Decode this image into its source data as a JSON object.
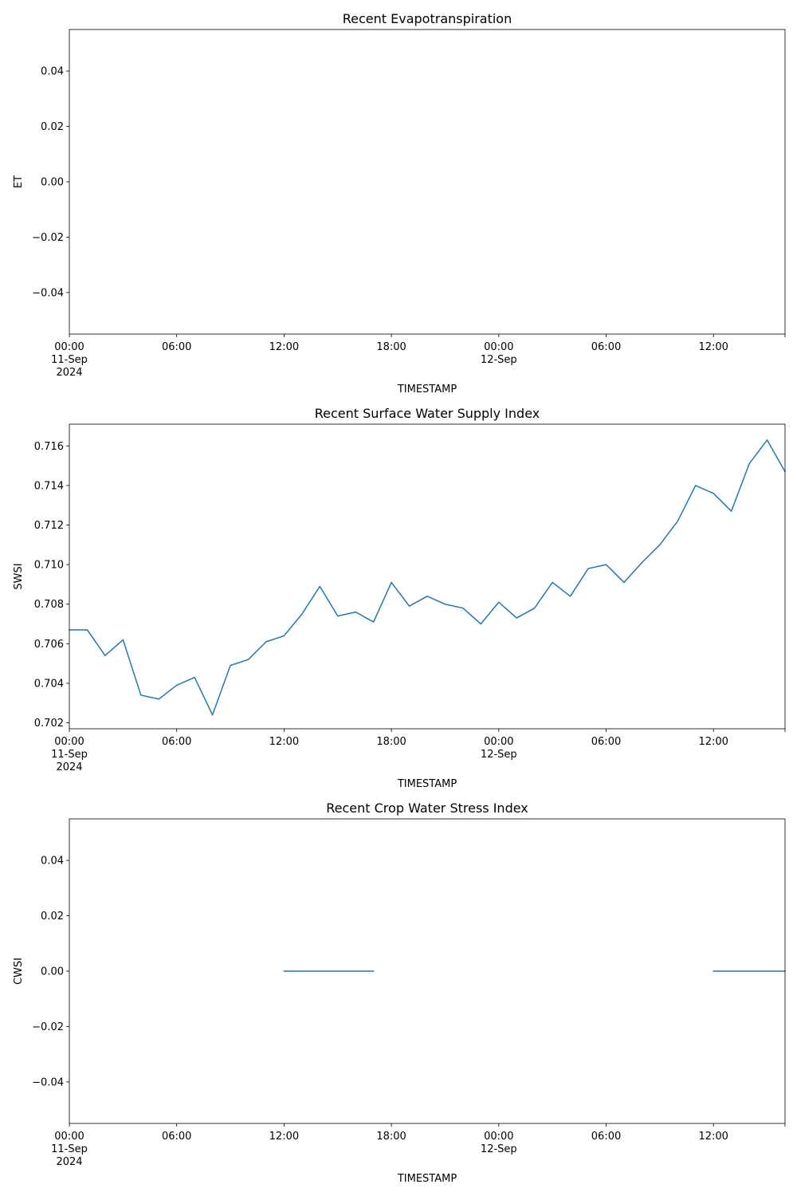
{
  "chart_data": [
    {
      "type": "line",
      "title": "Recent Evapotranspiration",
      "xlabel": "TIMESTAMP",
      "ylabel": "ET",
      "xlim": [
        "2024-09-11 00:00",
        "2024-09-12 16:00"
      ],
      "ylim": [
        -0.055,
        0.055
      ],
      "xticks": [
        {
          "value": "2024-09-11 00:00",
          "lines": [
            "00:00",
            "11-Sep",
            "2024"
          ]
        },
        {
          "value": "2024-09-11 06:00",
          "lines": [
            "06:00"
          ]
        },
        {
          "value": "2024-09-11 12:00",
          "lines": [
            "12:00"
          ]
        },
        {
          "value": "2024-09-11 18:00",
          "lines": [
            "18:00"
          ]
        },
        {
          "value": "2024-09-12 00:00",
          "lines": [
            "00:00",
            "12-Sep"
          ]
        },
        {
          "value": "2024-09-12 06:00",
          "lines": [
            "06:00"
          ]
        },
        {
          "value": "2024-09-12 12:00",
          "lines": [
            "12:00"
          ]
        },
        {
          "value": "2024-09-12 16:00",
          "lines": []
        }
      ],
      "yticks": [
        {
          "value": 0.04,
          "label": "0.04"
        },
        {
          "value": 0.02,
          "label": "0.02"
        },
        {
          "value": 0.0,
          "label": "0.00"
        },
        {
          "value": -0.02,
          "label": "−0.02"
        },
        {
          "value": -0.04,
          "label": "−0.04"
        }
      ],
      "color": "#1f77b4",
      "series": []
    },
    {
      "type": "line",
      "title": "Recent Surface Water Supply Index",
      "xlabel": "TIMESTAMP",
      "ylabel": "SWSI",
      "xlim": [
        "2024-09-11 00:00",
        "2024-09-12 16:00"
      ],
      "ylim": [
        0.7017,
        0.7171
      ],
      "xticks": [
        {
          "value": "2024-09-11 00:00",
          "lines": [
            "00:00",
            "11-Sep",
            "2024"
          ]
        },
        {
          "value": "2024-09-11 06:00",
          "lines": [
            "06:00"
          ]
        },
        {
          "value": "2024-09-11 12:00",
          "lines": [
            "12:00"
          ]
        },
        {
          "value": "2024-09-11 18:00",
          "lines": [
            "18:00"
          ]
        },
        {
          "value": "2024-09-12 00:00",
          "lines": [
            "00:00",
            "12-Sep"
          ]
        },
        {
          "value": "2024-09-12 06:00",
          "lines": [
            "06:00"
          ]
        },
        {
          "value": "2024-09-12 12:00",
          "lines": [
            "12:00"
          ]
        },
        {
          "value": "2024-09-12 16:00",
          "lines": []
        }
      ],
      "yticks": [
        {
          "value": 0.716,
          "label": "0.716"
        },
        {
          "value": 0.714,
          "label": "0.714"
        },
        {
          "value": 0.712,
          "label": "0.712"
        },
        {
          "value": 0.71,
          "label": "0.710"
        },
        {
          "value": 0.708,
          "label": "0.708"
        },
        {
          "value": 0.706,
          "label": "0.706"
        },
        {
          "value": 0.704,
          "label": "0.704"
        },
        {
          "value": 0.702,
          "label": "0.702"
        }
      ],
      "color": "#1f77b4",
      "series": [
        {
          "segments": [
            {
              "x": [
                "2024-09-11 00:00",
                "2024-09-11 01:00",
                "2024-09-11 02:00",
                "2024-09-11 03:00",
                "2024-09-11 04:00",
                "2024-09-11 05:00",
                "2024-09-11 06:00",
                "2024-09-11 07:00",
                "2024-09-11 08:00",
                "2024-09-11 09:00",
                "2024-09-11 10:00",
                "2024-09-11 11:00",
                "2024-09-11 12:00",
                "2024-09-11 13:00",
                "2024-09-11 14:00",
                "2024-09-11 15:00",
                "2024-09-11 16:00",
                "2024-09-11 17:00",
                "2024-09-11 18:00",
                "2024-09-11 19:00",
                "2024-09-11 20:00",
                "2024-09-11 21:00",
                "2024-09-11 22:00",
                "2024-09-11 23:00",
                "2024-09-12 00:00",
                "2024-09-12 01:00",
                "2024-09-12 02:00",
                "2024-09-12 03:00",
                "2024-09-12 04:00",
                "2024-09-12 05:00",
                "2024-09-12 06:00",
                "2024-09-12 07:00",
                "2024-09-12 08:00",
                "2024-09-12 09:00",
                "2024-09-12 10:00",
                "2024-09-12 11:00",
                "2024-09-12 12:00",
                "2024-09-12 13:00",
                "2024-09-12 14:00",
                "2024-09-12 15:00",
                "2024-09-12 16:00"
              ],
              "y": [
                0.7067,
                0.7067,
                0.7054,
                0.7062,
                0.7034,
                0.7032,
                0.7039,
                0.7043,
                0.7024,
                0.7049,
                0.7052,
                0.7061,
                0.7064,
                0.7075,
                0.7089,
                0.7074,
                0.7076,
                0.7071,
                0.7091,
                0.7079,
                0.7084,
                0.708,
                0.7078,
                0.707,
                0.7081,
                0.7073,
                0.7078,
                0.7091,
                0.7084,
                0.7098,
                0.71,
                0.7091,
                0.7101,
                0.711,
                0.7122,
                0.714,
                0.7136,
                0.7127,
                0.7151,
                0.7163,
                0.7147
              ]
            }
          ]
        }
      ]
    },
    {
      "type": "line",
      "title": "Recent Crop Water Stress Index",
      "xlabel": "TIMESTAMP",
      "ylabel": "CWSI",
      "xlim": [
        "2024-09-11 00:00",
        "2024-09-12 16:00"
      ],
      "ylim": [
        -0.055,
        0.055
      ],
      "xticks": [
        {
          "value": "2024-09-11 00:00",
          "lines": [
            "00:00",
            "11-Sep",
            "2024"
          ]
        },
        {
          "value": "2024-09-11 06:00",
          "lines": [
            "06:00"
          ]
        },
        {
          "value": "2024-09-11 12:00",
          "lines": [
            "12:00"
          ]
        },
        {
          "value": "2024-09-11 18:00",
          "lines": [
            "18:00"
          ]
        },
        {
          "value": "2024-09-12 00:00",
          "lines": [
            "00:00",
            "12-Sep"
          ]
        },
        {
          "value": "2024-09-12 06:00",
          "lines": [
            "06:00"
          ]
        },
        {
          "value": "2024-09-12 12:00",
          "lines": [
            "12:00"
          ]
        },
        {
          "value": "2024-09-12 16:00",
          "lines": []
        }
      ],
      "yticks": [
        {
          "value": 0.04,
          "label": "0.04"
        },
        {
          "value": 0.02,
          "label": "0.02"
        },
        {
          "value": 0.0,
          "label": "0.00"
        },
        {
          "value": -0.02,
          "label": "−0.02"
        },
        {
          "value": -0.04,
          "label": "−0.04"
        }
      ],
      "color": "#1f77b4",
      "series": [
        {
          "segments": [
            {
              "x": [
                "2024-09-11 12:00",
                "2024-09-11 13:00",
                "2024-09-11 14:00",
                "2024-09-11 15:00",
                "2024-09-11 16:00",
                "2024-09-11 17:00"
              ],
              "y": [
                0,
                0,
                0,
                0,
                0,
                0
              ]
            },
            {
              "x": [
                "2024-09-12 12:00",
                "2024-09-12 13:00",
                "2024-09-12 14:00",
                "2024-09-12 15:00",
                "2024-09-12 16:00"
              ],
              "y": [
                0,
                0,
                0,
                0,
                0
              ]
            }
          ]
        }
      ]
    }
  ]
}
